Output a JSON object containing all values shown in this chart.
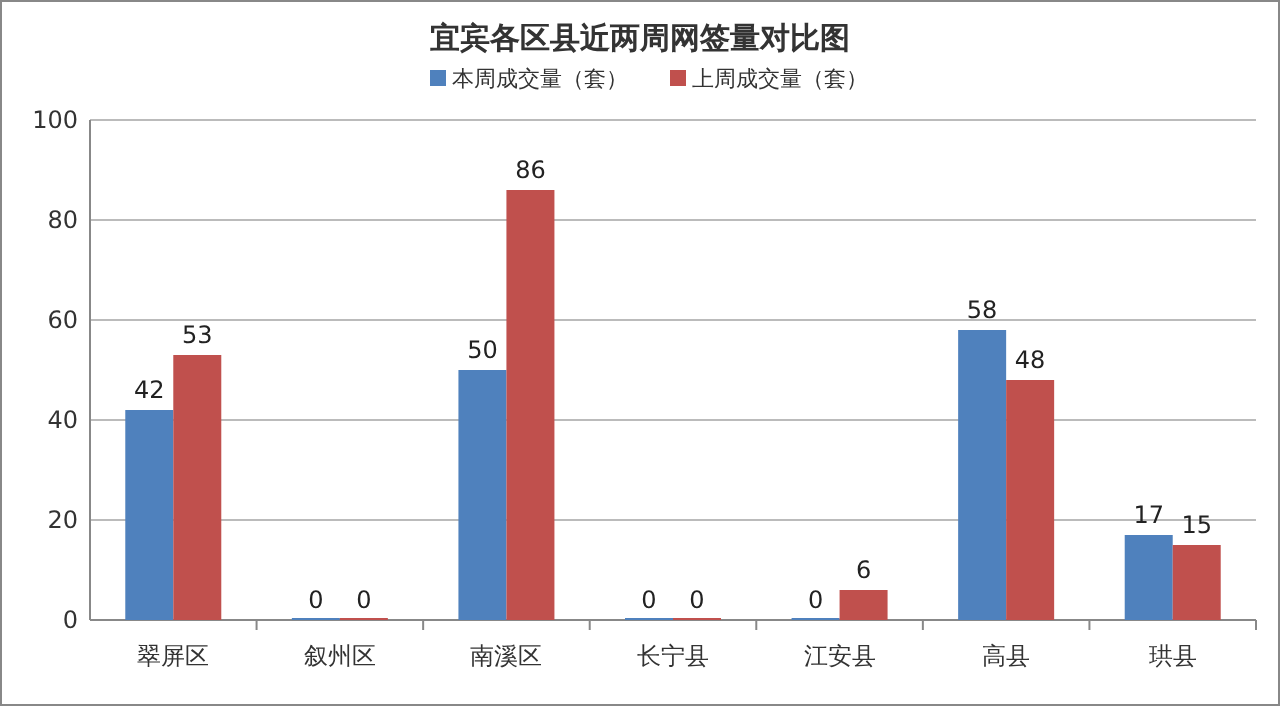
{
  "chart_data": {
    "type": "bar",
    "title": "宜宾各区县近两周网签量对比图",
    "categories": [
      "翠屏区",
      "叙州区",
      "南溪区",
      "长宁县",
      "江安县",
      "高县",
      "珙县"
    ],
    "series": [
      {
        "name": "本周成交量（套）",
        "color": "#4f81bd",
        "values": [
          42,
          0,
          50,
          0,
          0,
          58,
          17
        ]
      },
      {
        "name": "上周成交量（套）",
        "color": "#c0504d",
        "values": [
          53,
          0,
          86,
          0,
          6,
          48,
          15
        ]
      }
    ],
    "ylim": [
      0,
      100
    ],
    "yticks": [
      0,
      20,
      40,
      60,
      80,
      100
    ],
    "grid": "y",
    "legend": "top",
    "data_labels": true
  }
}
